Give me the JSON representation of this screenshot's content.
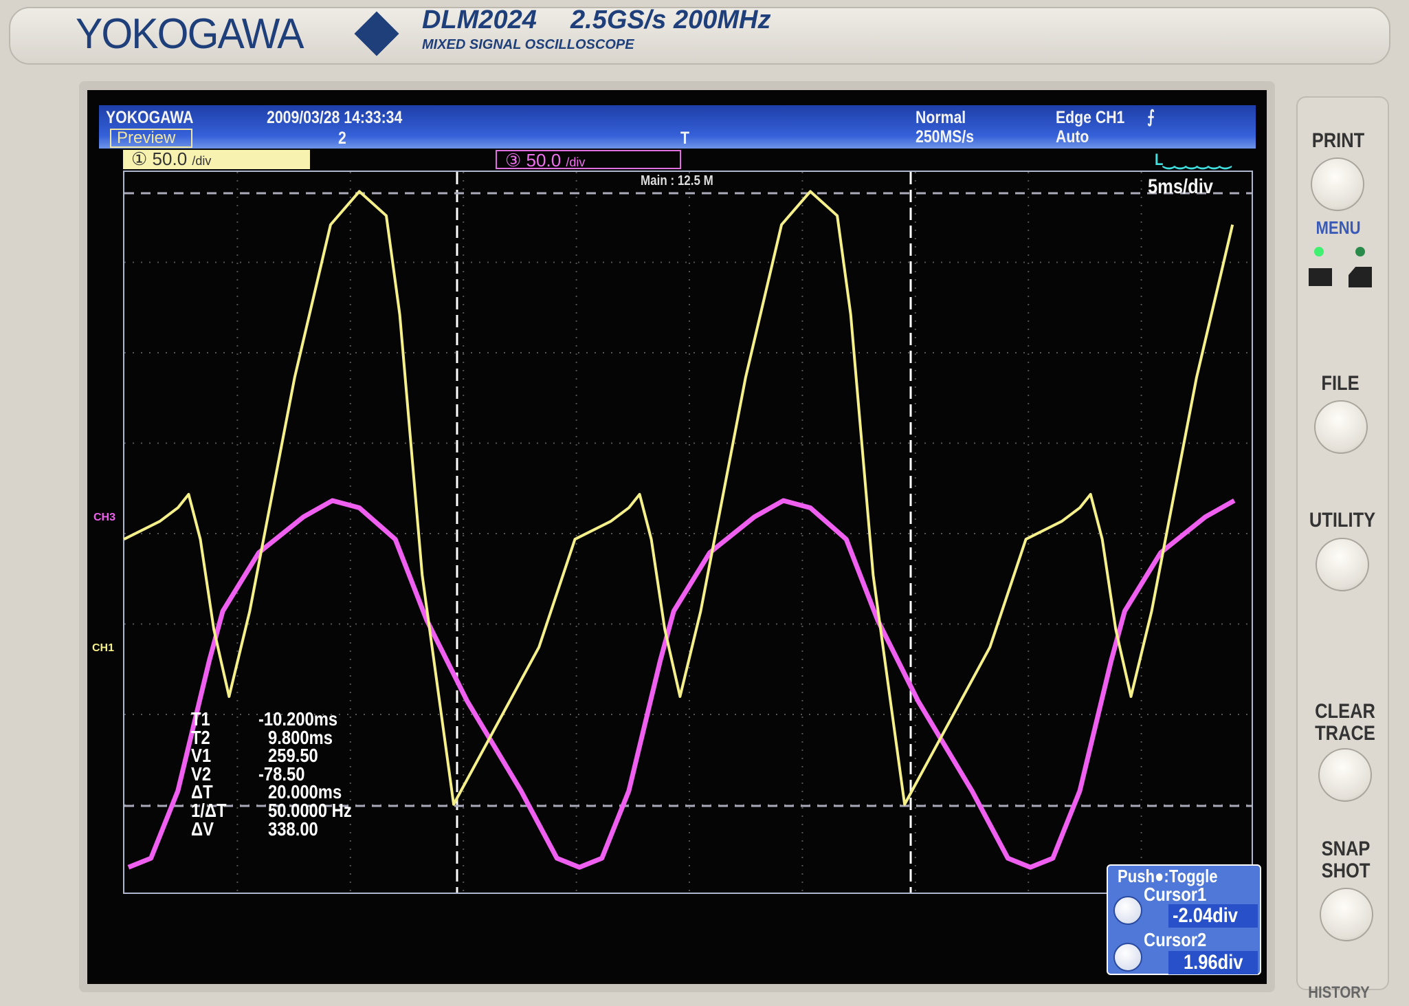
{
  "device": {
    "brand": "YOKOGAWA",
    "model": "DLM2024",
    "spec": "2.5GS/s 200MHz",
    "subtitle": "MIXED SIGNAL OSCILLOSCOPE"
  },
  "header": {
    "brand": "YOKOGAWA",
    "datetime": "2009/03/28 14:33:34",
    "mode_label": "Preview",
    "marker": "2",
    "trigger_mark": "T",
    "acq_mode": "Normal",
    "sample_rate": "250MS/s",
    "trigger": "Edge CH1",
    "trigger_icon": "rising-edge-icon",
    "trigger_mode": "Auto"
  },
  "channels": {
    "ch1": {
      "label": "CH1",
      "scale": "50.0",
      "unit": "/div",
      "color": "#f5f08a"
    },
    "ch3": {
      "label": "CH3",
      "scale": "50.0",
      "unit": "/div",
      "color": "#f060f0"
    }
  },
  "display": {
    "main_record": "Main : 12.5 M",
    "timebase": "5ms/div",
    "logic_marker": "L"
  },
  "measurements": [
    {
      "label": "T1",
      "value": "-10.200ms"
    },
    {
      "label": "T2",
      "value": "9.800ms"
    },
    {
      "label": "V1",
      "value": "259.50"
    },
    {
      "label": "V2",
      "value": "-78.50"
    },
    {
      "label": "ΔT",
      "value": "20.000ms"
    },
    {
      "label": "1/ΔT",
      "value": "50.0000 Hz"
    },
    {
      "label": "ΔV",
      "value": "338.00"
    }
  ],
  "cursor_panel": {
    "title": "Push●:Toggle",
    "cursor1_label": "Cursor1",
    "cursor1_value": "-2.04div",
    "cursor2_label": "Cursor2",
    "cursor2_value": "1.96div"
  },
  "panel_buttons": {
    "print": "PRINT",
    "menu": "MENU",
    "file": "FILE",
    "utility": "UTILITY",
    "clear1": "CLEAR",
    "clear2": "TRACE",
    "snap1": "SNAP",
    "snap2": "SHOT",
    "history": "HISTORY"
  }
}
